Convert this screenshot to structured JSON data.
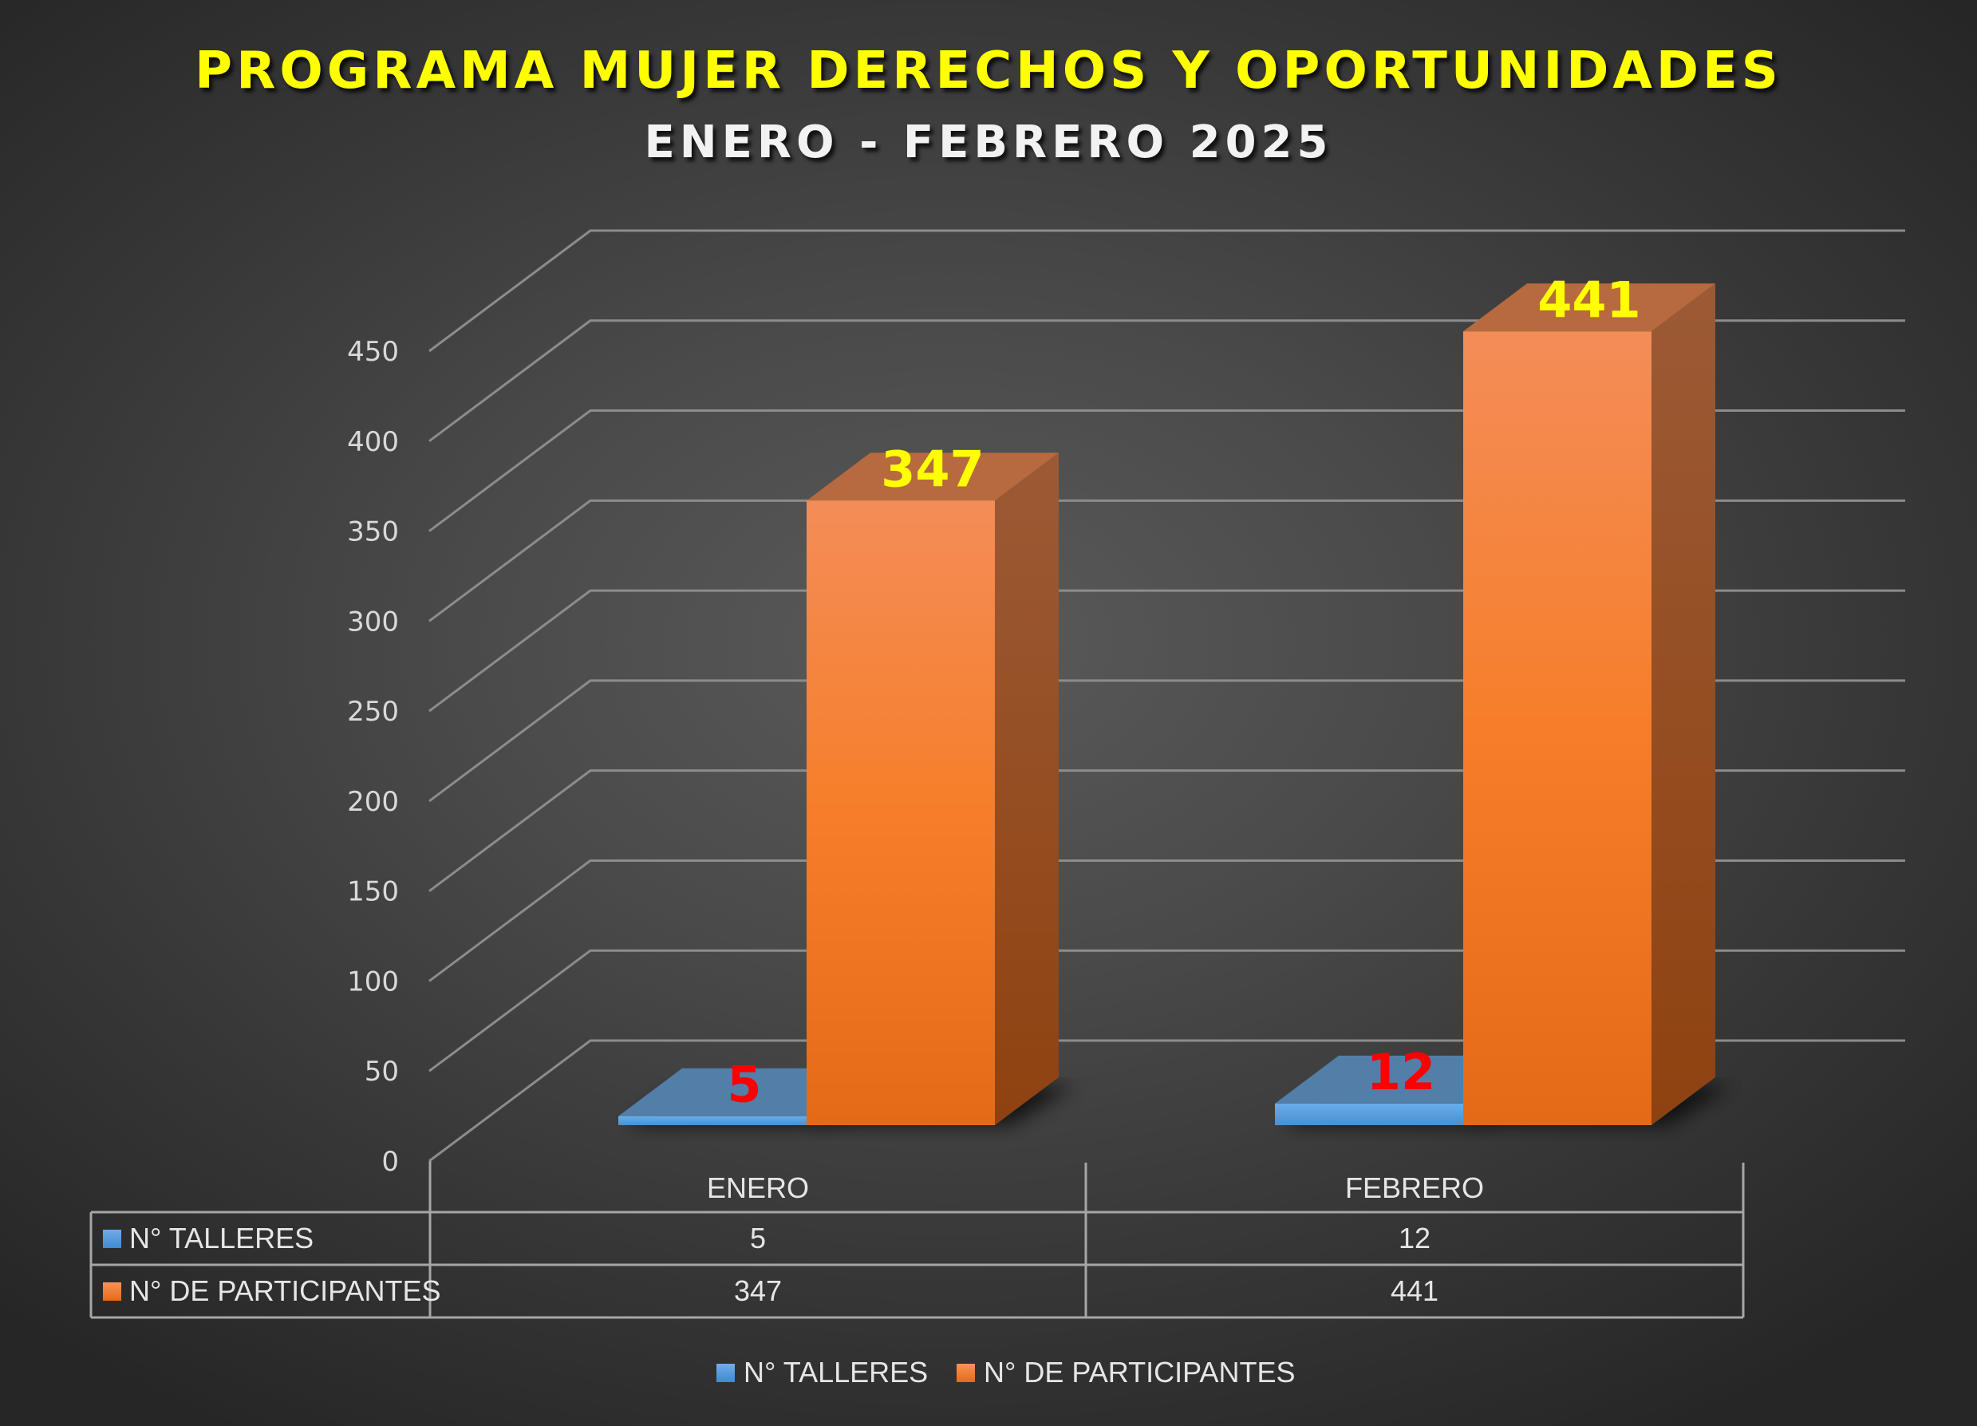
{
  "chart_data": {
    "type": "bar",
    "variant": "3d-clustered-column",
    "title": "PROGRAMA MUJER DERECHOS Y OPORTUNIDADES",
    "subtitle": "ENERO - FEBRERO 2025",
    "categories": [
      "ENERO",
      "FEBRERO"
    ],
    "series": [
      {
        "name": "N° TALLERES",
        "values": [
          5,
          12
        ],
        "color": "#5b9bd5",
        "label_color": "#ff0000"
      },
      {
        "name": "N° DE PARTICIPANTES",
        "values": [
          347,
          441
        ],
        "color": "#f4822a",
        "label_color": "#ffff00"
      }
    ],
    "xlabel": "",
    "ylabel": "",
    "ylim": [
      0,
      450
    ],
    "yticks": [
      0,
      50,
      100,
      150,
      200,
      250,
      300,
      350,
      400,
      450
    ],
    "grid": true,
    "data_table": true,
    "legend": "bottom"
  },
  "colors": {
    "title": "#ffff00",
    "subtitle": "#f2f2f2",
    "gridline": "#8c8c8c",
    "axis_text": "#d9d9d9"
  }
}
